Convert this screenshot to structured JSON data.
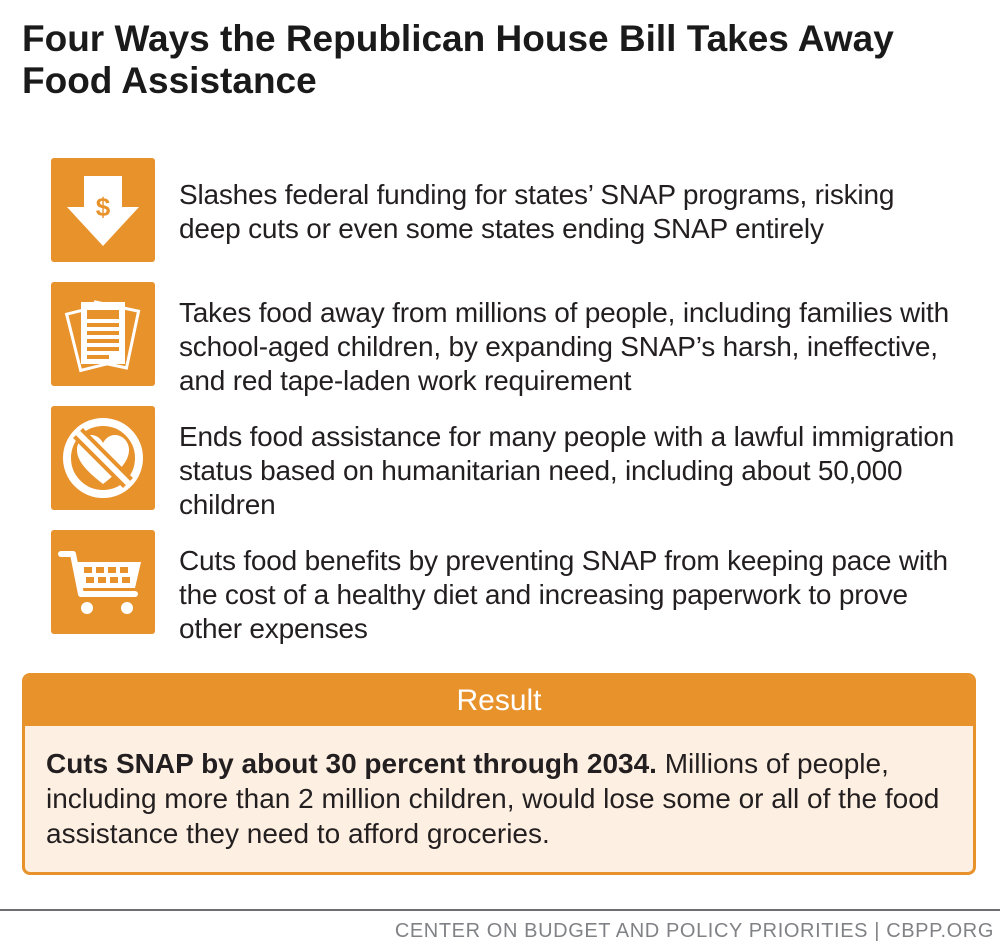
{
  "title": "Four Ways the Republican House Bill Takes Away Food Assistance",
  "accent_color": "#e8922c",
  "items": [
    {
      "icon": "dollar-down-arrow-icon",
      "text": "Slashes federal funding for states’ SNAP programs, risking deep cuts or even some states ending SNAP entirely"
    },
    {
      "icon": "paperwork-icon",
      "text": "Takes food away from millions of people, including families with school-aged children, by expanding SNAP’s harsh, ineffective, and red tape-laden work requirement"
    },
    {
      "icon": "no-heart-icon",
      "text": "Ends food assistance for many people with a lawful immigration status based on humanitarian need, including about 50,000 children"
    },
    {
      "icon": "shopping-cart-icon",
      "text": "Cuts food benefits by preventing SNAP from keeping pace with the cost of a healthy diet and increasing paperwork to prove other expenses"
    }
  ],
  "result": {
    "heading": "Result",
    "bold_text": "Cuts SNAP by about 30 percent through 2034.",
    "text": " Millions of people, including more than 2 million children, would lose some or all of the food assistance they need to afford groceries."
  },
  "footer": "CENTER ON BUDGET AND POLICY PRIORITIES | CBPP.ORG"
}
